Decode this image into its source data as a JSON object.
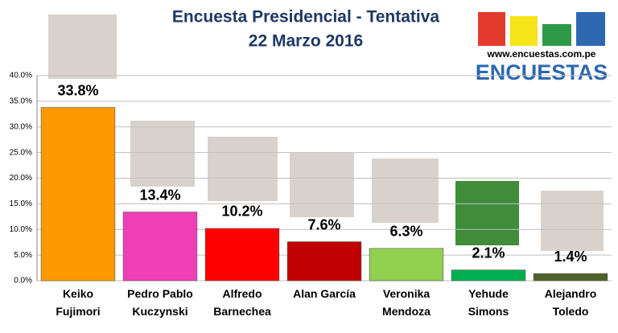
{
  "chart_data": {
    "type": "bar",
    "title": "Encuesta Presidencial - Tentativa",
    "subtitle": "22 Marzo 2016",
    "categories": [
      "Keiko\nFujimori",
      "Pedro Pablo\nKuczynski",
      "Alfredo\nBarnechea",
      "Alan García",
      "Veronika\nMendoza",
      "Yehude\nSimons",
      "Alejandro\nToledo"
    ],
    "values": [
      33.8,
      13.4,
      10.2,
      7.6,
      6.3,
      2.1,
      1.4
    ],
    "value_labels": [
      "33.8%",
      "13.4%",
      "10.2%",
      "7.6%",
      "6.3%",
      "2.1%",
      "1.4%"
    ],
    "colors": [
      "#ff9900",
      "#ee3fb6",
      "#ff0000",
      "#c00000",
      "#92d050",
      "#00b050",
      "#4f6228"
    ],
    "ylim": [
      0,
      40
    ],
    "yticks": [
      {
        "value": 0,
        "label": "0.0%"
      },
      {
        "value": 5,
        "label": "5.0%"
      },
      {
        "value": 10,
        "label": "10.0%"
      },
      {
        "value": 15,
        "label": "15.0%"
      },
      {
        "value": 20,
        "label": "20.0%"
      },
      {
        "value": 25,
        "label": "25.0%"
      },
      {
        "value": 30,
        "label": "30.0%"
      },
      {
        "value": 35,
        "label": "35.0%"
      },
      {
        "value": 40,
        "label": "40.0%"
      }
    ],
    "grid": true
  },
  "logo": {
    "url": "www.encuestas.com.pe",
    "name": "ENCUESTAS"
  }
}
